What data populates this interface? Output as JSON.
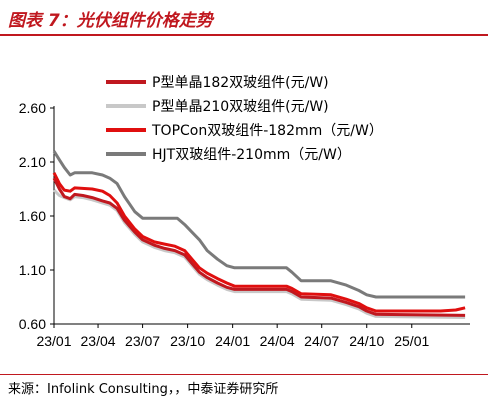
{
  "title": "图表 7：光伏组件价格走势",
  "source": "来源：Infolink Consulting，，中泰证券研究所",
  "chart_data": {
    "type": "line",
    "ylim": [
      0.6,
      2.6
    ],
    "yticks": [
      "2.60",
      "2.10",
      "1.60",
      "1.10",
      "0.60"
    ],
    "ytick_values": [
      2.6,
      2.1,
      1.6,
      1.1,
      0.6
    ],
    "xlim": [
      "2023-01-01",
      "2025-04-30"
    ],
    "xticks": [
      "23/01",
      "23/04",
      "23/07",
      "23/10",
      "24/01",
      "24/04",
      "24/07",
      "24/10",
      "25/01"
    ],
    "xtick_dates": [
      "2023-01-01",
      "2023-04-01",
      "2023-07-01",
      "2023-10-01",
      "2024-01-01",
      "2024-04-01",
      "2024-07-01",
      "2024-10-01",
      "2025-01-01"
    ],
    "legend_position": "top-right",
    "series": [
      {
        "name": "P型单晶182双玻组件(元/W)",
        "color": "#c0181f",
        "points": [
          [
            "2023-01-01",
            1.95
          ],
          [
            "2023-01-12",
            1.85
          ],
          [
            "2023-01-22",
            1.78
          ],
          [
            "2023-02-03",
            1.76
          ],
          [
            "2023-02-12",
            1.8
          ],
          [
            "2023-03-01",
            1.79
          ],
          [
            "2023-03-20",
            1.77
          ],
          [
            "2023-04-10",
            1.74
          ],
          [
            "2023-04-25",
            1.72
          ],
          [
            "2023-05-10",
            1.67
          ],
          [
            "2023-05-25",
            1.56
          ],
          [
            "2023-06-15",
            1.45
          ],
          [
            "2023-07-01",
            1.38
          ],
          [
            "2023-07-25",
            1.33
          ],
          [
            "2023-08-15",
            1.3
          ],
          [
            "2023-09-05",
            1.28
          ],
          [
            "2023-09-25",
            1.24
          ],
          [
            "2023-10-10",
            1.16
          ],
          [
            "2023-10-25",
            1.08
          ],
          [
            "2023-11-10",
            1.03
          ],
          [
            "2023-12-01",
            0.98
          ],
          [
            "2023-12-20",
            0.94
          ],
          [
            "2024-01-05",
            0.92
          ],
          [
            "2024-04-20",
            0.92
          ],
          [
            "2024-05-01",
            0.9
          ],
          [
            "2024-05-20",
            0.85
          ],
          [
            "2024-07-20",
            0.84
          ],
          [
            "2024-08-20",
            0.8
          ],
          [
            "2024-09-15",
            0.76
          ],
          [
            "2024-10-01",
            0.72
          ],
          [
            "2024-10-20",
            0.69
          ],
          [
            "2025-04-20",
            0.68
          ]
        ]
      },
      {
        "name": "P型单晶210双玻组件(元/W)",
        "color": "#c8c8c8",
        "points": [
          [
            "2023-01-01",
            1.84
          ],
          [
            "2023-01-12",
            1.79
          ],
          [
            "2023-01-22",
            1.77
          ],
          [
            "2023-02-03",
            1.75
          ],
          [
            "2023-02-12",
            1.78
          ],
          [
            "2023-03-01",
            1.77
          ],
          [
            "2023-03-20",
            1.75
          ],
          [
            "2023-04-10",
            1.72
          ],
          [
            "2023-04-25",
            1.7
          ],
          [
            "2023-05-10",
            1.65
          ],
          [
            "2023-05-25",
            1.54
          ],
          [
            "2023-06-15",
            1.43
          ],
          [
            "2023-07-01",
            1.36
          ],
          [
            "2023-07-25",
            1.31
          ],
          [
            "2023-08-15",
            1.28
          ],
          [
            "2023-09-05",
            1.26
          ],
          [
            "2023-09-25",
            1.22
          ],
          [
            "2023-10-10",
            1.14
          ],
          [
            "2023-10-25",
            1.06
          ],
          [
            "2023-11-10",
            1.01
          ],
          [
            "2023-12-01",
            0.96
          ],
          [
            "2023-12-20",
            0.92
          ],
          [
            "2024-01-05",
            0.9
          ],
          [
            "2024-04-20",
            0.9
          ],
          [
            "2024-05-01",
            0.88
          ],
          [
            "2024-05-20",
            0.83
          ],
          [
            "2024-07-20",
            0.82
          ],
          [
            "2024-08-20",
            0.78
          ],
          [
            "2024-09-15",
            0.74
          ],
          [
            "2024-10-01",
            0.7
          ],
          [
            "2024-10-20",
            0.67
          ],
          [
            "2025-04-20",
            0.66
          ]
        ]
      },
      {
        "name": "TOPCon双玻组件-182mm（元/W）",
        "color": "#e00f0f",
        "points": [
          [
            "2023-01-01",
            2.0
          ],
          [
            "2023-01-12",
            1.9
          ],
          [
            "2023-01-22",
            1.84
          ],
          [
            "2023-02-03",
            1.83
          ],
          [
            "2023-02-12",
            1.86
          ],
          [
            "2023-03-20",
            1.85
          ],
          [
            "2023-04-10",
            1.83
          ],
          [
            "2023-04-25",
            1.79
          ],
          [
            "2023-05-10",
            1.72
          ],
          [
            "2023-05-25",
            1.6
          ],
          [
            "2023-06-15",
            1.48
          ],
          [
            "2023-07-01",
            1.41
          ],
          [
            "2023-07-25",
            1.36
          ],
          [
            "2023-08-15",
            1.34
          ],
          [
            "2023-09-05",
            1.32
          ],
          [
            "2023-09-25",
            1.28
          ],
          [
            "2023-10-10",
            1.2
          ],
          [
            "2023-10-25",
            1.12
          ],
          [
            "2023-11-10",
            1.07
          ],
          [
            "2023-12-01",
            1.02
          ],
          [
            "2023-12-20",
            0.98
          ],
          [
            "2024-01-05",
            0.95
          ],
          [
            "2024-04-20",
            0.95
          ],
          [
            "2024-05-01",
            0.93
          ],
          [
            "2024-05-20",
            0.88
          ],
          [
            "2024-07-20",
            0.87
          ],
          [
            "2024-08-20",
            0.83
          ],
          [
            "2024-09-15",
            0.79
          ],
          [
            "2024-10-01",
            0.75
          ],
          [
            "2024-10-20",
            0.72
          ],
          [
            "2025-03-01",
            0.72
          ],
          [
            "2025-04-01",
            0.73
          ],
          [
            "2025-04-20",
            0.75
          ]
        ]
      },
      {
        "name": "HJT双玻组件-210mm（元/W）",
        "color": "#7a7a7a",
        "points": [
          [
            "2023-01-01",
            2.2
          ],
          [
            "2023-01-12",
            2.12
          ],
          [
            "2023-01-22",
            2.05
          ],
          [
            "2023-02-03",
            1.98
          ],
          [
            "2023-02-12",
            2.0
          ],
          [
            "2023-03-20",
            2.0
          ],
          [
            "2023-04-10",
            1.98
          ],
          [
            "2023-04-25",
            1.95
          ],
          [
            "2023-05-10",
            1.9
          ],
          [
            "2023-05-25",
            1.78
          ],
          [
            "2023-06-15",
            1.64
          ],
          [
            "2023-07-01",
            1.58
          ],
          [
            "2023-09-10",
            1.58
          ],
          [
            "2023-09-25",
            1.52
          ],
          [
            "2023-10-10",
            1.45
          ],
          [
            "2023-10-25",
            1.38
          ],
          [
            "2023-11-10",
            1.28
          ],
          [
            "2023-12-01",
            1.2
          ],
          [
            "2023-12-20",
            1.14
          ],
          [
            "2024-01-05",
            1.12
          ],
          [
            "2024-04-20",
            1.12
          ],
          [
            "2024-05-01",
            1.08
          ],
          [
            "2024-05-20",
            1.0
          ],
          [
            "2024-07-20",
            1.0
          ],
          [
            "2024-08-20",
            0.96
          ],
          [
            "2024-09-15",
            0.91
          ],
          [
            "2024-10-01",
            0.87
          ],
          [
            "2024-10-20",
            0.85
          ],
          [
            "2025-04-20",
            0.85
          ]
        ]
      }
    ]
  }
}
